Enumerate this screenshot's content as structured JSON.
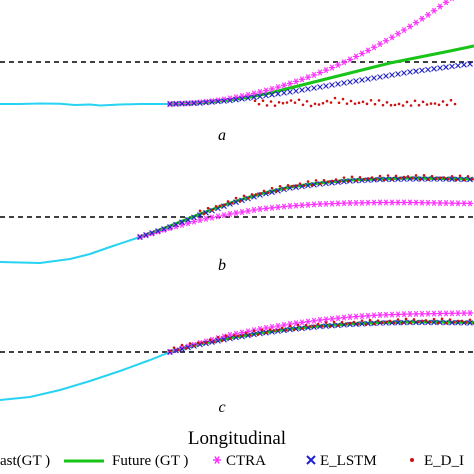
{
  "chart_data": [
    {
      "type": "line",
      "panel_label": "a",
      "series": [
        {
          "name": "Past(GT )",
          "color": "#27d3f2",
          "marker": "line",
          "x": [
            0,
            20,
            40,
            60,
            75,
            90,
            100,
            120,
            140,
            170
          ],
          "y": [
            0,
            0,
            0.5,
            0.3,
            -1,
            -0.5,
            -1.5,
            -0.5,
            0,
            0
          ]
        },
        {
          "name": "Future (GT )",
          "color": "#17c417",
          "marker": "line",
          "x": [
            170,
            190,
            210,
            230,
            250,
            270,
            290,
            310,
            330,
            350,
            370,
            390,
            410,
            430,
            450,
            474
          ],
          "y": [
            0,
            0.5,
            2,
            4,
            7,
            11,
            16,
            21,
            26,
            31,
            36,
            41,
            45,
            49,
            53,
            58
          ]
        },
        {
          "name": "CTRA",
          "color": "#ff33ff",
          "marker": "asterisk",
          "x": [
            170,
            190,
            210,
            230,
            250,
            270,
            290,
            310,
            330,
            350,
            370,
            390,
            410,
            430,
            450,
            474
          ],
          "y": [
            0,
            0.7,
            2.5,
            5.5,
            9.5,
            14.5,
            20.5,
            27.5,
            35.5,
            44.5,
            54.5,
            65.5,
            77.5,
            90.5,
            104.5,
            122
          ]
        },
        {
          "name": "E_LSTM",
          "color": "#2222cc",
          "marker": "x",
          "x": [
            170,
            200,
            230,
            260,
            290,
            320,
            350,
            380,
            410,
            440,
            470
          ],
          "y": [
            0,
            1,
            3.5,
            7.5,
            12,
            17,
            22,
            27,
            32,
            36,
            40
          ]
        },
        {
          "name": "E_D_LSTM",
          "color": "#cc1111",
          "marker": "dot",
          "x": [
            255,
            275,
            295,
            315,
            335,
            355,
            375,
            395,
            415,
            435,
            455
          ],
          "y": [
            2,
            0,
            3,
            -1,
            4,
            1,
            2,
            -1,
            1,
            0,
            2
          ]
        }
      ],
      "reference_y": 42,
      "ylim": [
        -12,
        130
      ]
    },
    {
      "type": "line",
      "panel_label": "b",
      "series": [
        {
          "name": "Past(GT )",
          "color": "#27d3f2",
          "marker": "line",
          "x": [
            0,
            40,
            70,
            90,
            110,
            140
          ],
          "y": [
            0,
            -1,
            3,
            8,
            15,
            25
          ]
        },
        {
          "name": "Future (GT )",
          "color": "#17c417",
          "marker": "line",
          "x": [
            140,
            170,
            200,
            230,
            260,
            290,
            320,
            350,
            380,
            410,
            440,
            474
          ],
          "y": [
            25,
            36,
            48,
            59,
            68,
            75,
            79,
            82,
            83,
            84,
            83.5,
            83
          ]
        },
        {
          "name": "CTRA",
          "color": "#ff33ff",
          "marker": "asterisk",
          "x": [
            140,
            170,
            200,
            230,
            260,
            290,
            320,
            350,
            380,
            410,
            440,
            474
          ],
          "y": [
            25,
            34,
            42,
            48,
            53,
            56,
            58,
            59,
            59.5,
            59.5,
            59,
            58.5
          ]
        },
        {
          "name": "E_LSTM",
          "color": "#2222cc",
          "marker": "x",
          "x": [
            140,
            170,
            200,
            230,
            260,
            290,
            320,
            350,
            380,
            410,
            440,
            474
          ],
          "y": [
            25,
            35,
            47,
            58,
            67,
            74,
            78,
            81,
            82.5,
            83,
            83,
            82.5
          ]
        },
        {
          "name": "E_D_LSTM",
          "color": "#cc1111",
          "marker": "dot",
          "x": [
            200,
            230,
            260,
            290,
            320,
            350,
            380,
            410,
            440,
            474
          ],
          "y": [
            49,
            60,
            69,
            76,
            80,
            83,
            84,
            85,
            84,
            84
          ]
        }
      ],
      "reference_y": 45,
      "ylim": [
        -12,
        130
      ]
    },
    {
      "type": "line",
      "panel_label": "c",
      "series": [
        {
          "name": "Past(GT )",
          "color": "#27d3f2",
          "marker": "line",
          "x": [
            0,
            30,
            60,
            90,
            120,
            150,
            170
          ],
          "y": [
            0,
            3,
            10,
            19,
            29,
            40,
            48
          ]
        },
        {
          "name": "Future (GT )",
          "color": "#17c417",
          "marker": "line",
          "x": [
            170,
            200,
            230,
            260,
            290,
            320,
            350,
            380,
            410,
            440,
            474
          ],
          "y": [
            48,
            56,
            62,
            67,
            71,
            74,
            76,
            77.5,
            78,
            78,
            77.5
          ]
        },
        {
          "name": "CTRA",
          "color": "#ff33ff",
          "marker": "asterisk",
          "x": [
            170,
            200,
            230,
            260,
            290,
            320,
            350,
            380,
            410,
            440,
            474
          ],
          "y": [
            48,
            57,
            65,
            71,
            76,
            80,
            83,
            85,
            86,
            86.5,
            87
          ]
        },
        {
          "name": "E_LSTM",
          "color": "#2222cc",
          "marker": "x",
          "x": [
            170,
            200,
            230,
            260,
            290,
            320,
            350,
            380,
            410,
            440,
            474
          ],
          "y": [
            48,
            55.5,
            61.5,
            66.5,
            70.5,
            73.5,
            75.5,
            77,
            77.5,
            77.5,
            77
          ]
        },
        {
          "name": "E_D_LSTM",
          "color": "#cc1111",
          "marker": "dot",
          "x": [
            170,
            200,
            230,
            260,
            290,
            320,
            350,
            380,
            410,
            440,
            474
          ],
          "y": [
            50,
            57,
            63,
            68,
            72,
            75,
            77,
            78,
            79,
            79,
            78.5
          ]
        }
      ],
      "reference_y": 48,
      "ylim": [
        -12,
        130
      ]
    }
  ],
  "xlabel": "Longitudinal",
  "legend": {
    "entries": [
      {
        "label": "ast(GT )",
        "color": "#27d3f2",
        "marker": "line"
      },
      {
        "label": "Future (GT )",
        "color": "#17c417",
        "marker": "line"
      },
      {
        "label": "CTRA",
        "color": "#ff33ff",
        "marker": "asterisk"
      },
      {
        "label": "E_LSTM",
        "color": "#2222cc",
        "marker": "x"
      },
      {
        "label": "E_D_I",
        "color": "#cc1111",
        "marker": "dot"
      }
    ],
    "placement": "bottom"
  },
  "colors": {
    "reference_line": "#000000"
  }
}
